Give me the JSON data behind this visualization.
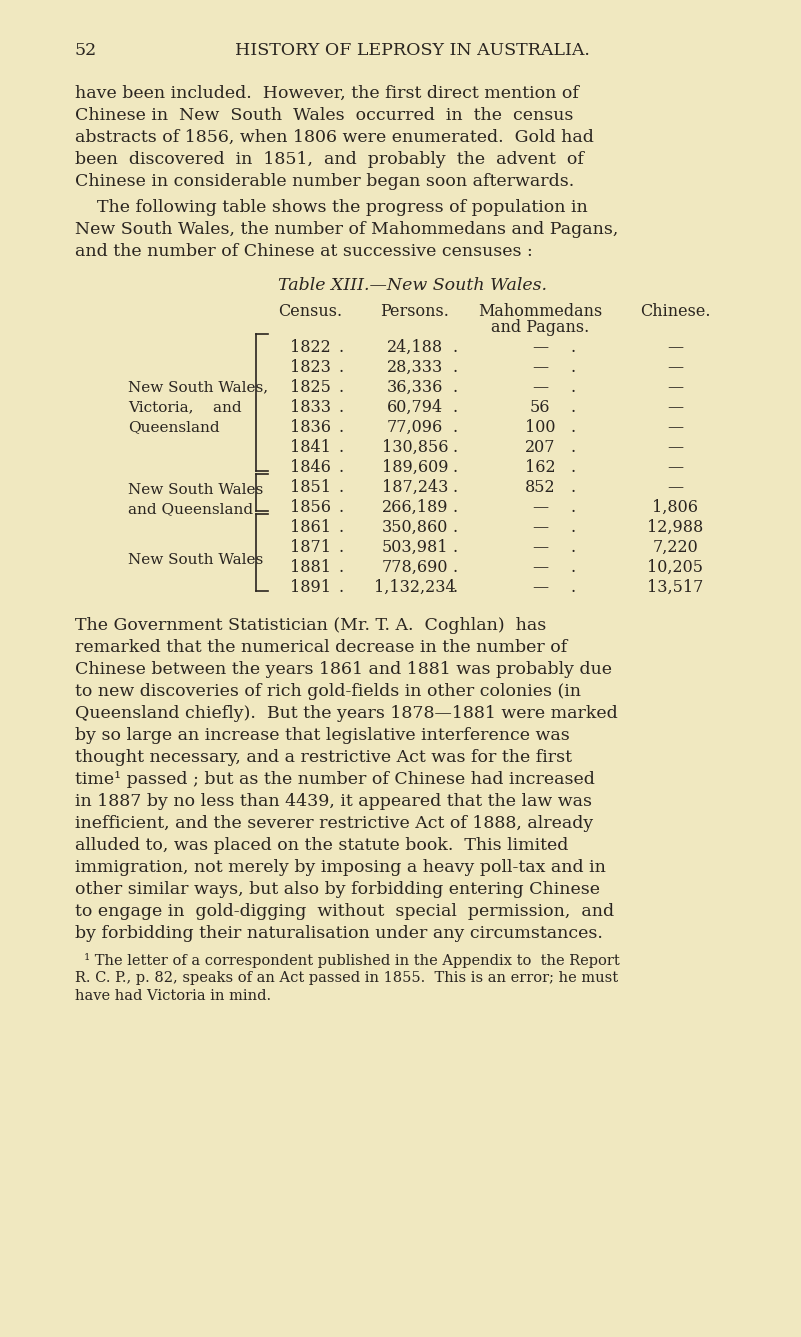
{
  "bg_color": "#f0e8c0",
  "text_color": "#2a2520",
  "page_num": "52",
  "header": "HISTORY OF LEPROSY IN AUSTRALIA.",
  "para1_lines": [
    "have been included.  However, the first direct mention of",
    "Chinese in  New  South  Wales  occurred  in  the  census",
    "abstracts of 1856, when 1806 were enumerated.  Gold had",
    "been  discovered  in  1851,  and  probably  the  advent  of",
    "Chinese in considerable number began soon afterwards."
  ],
  "para2_lines": [
    "    The following table shows the progress of population in",
    "New South Wales, the number of Mahommedans and Pagans,",
    "and the number of Chinese at successive censuses :"
  ],
  "table_title": "Table XIII.—New South Wales.",
  "table_rows": [
    {
      "year": "1822",
      "persons": "24,188",
      "mahom": "—",
      "chinese": "—"
    },
    {
      "year": "1823",
      "persons": "28,333",
      "mahom": "—",
      "chinese": "—"
    },
    {
      "year": "1825",
      "persons": "36,336",
      "mahom": "—",
      "chinese": "—"
    },
    {
      "year": "1833",
      "persons": "60,794",
      "mahom": "56",
      "chinese": "—"
    },
    {
      "year": "1836",
      "persons": "77,096",
      "mahom": "100",
      "chinese": "—"
    },
    {
      "year": "1841",
      "persons": "130,856",
      "mahom": "207",
      "chinese": "—"
    },
    {
      "year": "1846",
      "persons": "189,609",
      "mahom": "162",
      "chinese": "—"
    },
    {
      "year": "1851",
      "persons": "187,243",
      "mahom": "852",
      "chinese": "—"
    },
    {
      "year": "1856",
      "persons": "266,189",
      "mahom": "—",
      "chinese": "1,806"
    },
    {
      "year": "1861",
      "persons": "350,860",
      "mahom": "—",
      "chinese": "12,988"
    },
    {
      "year": "1871",
      "persons": "503,981",
      "mahom": "—",
      "chinese": "7,220"
    },
    {
      "year": "1881",
      "persons": "778,690",
      "mahom": "—",
      "chinese": "10,205"
    },
    {
      "year": "1891",
      "persons": "1,132,234",
      "mahom": "—",
      "chinese": "13,517"
    }
  ],
  "group1_label_lines": [
    "New South Wales,",
    "Victoria,    and",
    "Queensland"
  ],
  "group2_label_lines": [
    "New South Wales",
    "and Queensland"
  ],
  "group3_label_lines": [
    "New South Wales"
  ],
  "para3_lines": [
    "The Government Statistician (Mr. T. A.  Coghlan)  has",
    "remarked that the numerical decrease in the number of",
    "Chinese between the years 1861 and 1881 was probably due",
    "to new discoveries of rich gold-fields in other colonies (in",
    "Queensland chiefly).  But the years 1878—1881 were marked",
    "by so large an increase that legislative interference was",
    "thought necessary, and a restrictive Act was for the first",
    "time¹ passed ; but as the number of Chinese had increased",
    "in 1887 by no less than 4439, it appeared that the law was",
    "inefficient, and the severer restrictive Act of 1888, already",
    "alluded to, was placed on the statute book.  This limited",
    "immigration, not merely by imposing a heavy poll-tax and in",
    "other similar ways, but also by forbidding entering Chinese",
    "to engage in  gold-digging  without  special  permission,  and",
    "by forbidding their naturalisation under any circumstances."
  ],
  "footnote_lines": [
    "  ¹ The letter of a correspondent published in the Appendix to  the Report",
    "R. C. P., p. 82, speaks of an Act passed in 1855.  This is an error; he must",
    "have had Victoria in mind."
  ]
}
